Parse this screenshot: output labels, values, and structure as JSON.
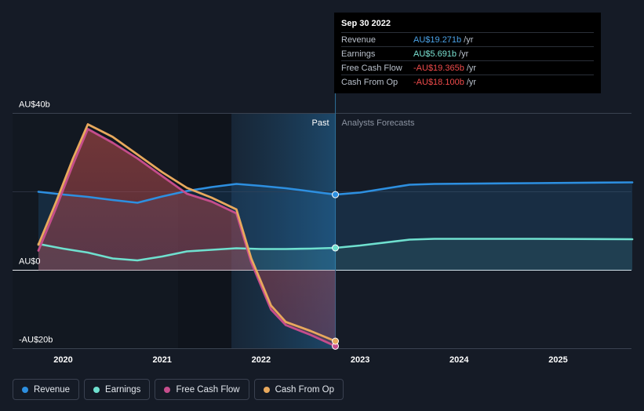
{
  "tooltip": {
    "date": "Sep 30 2022",
    "rows": [
      {
        "label": "Revenue",
        "value": "AU$19.271b",
        "unit": "/yr",
        "color": "#4ba3e8"
      },
      {
        "label": "Earnings",
        "value": "AU$5.691b",
        "unit": "/yr",
        "color": "#7be3d3"
      },
      {
        "label": "Free Cash Flow",
        "value": "-AU$19.365b",
        "unit": "/yr",
        "color": "#f04b4b"
      },
      {
        "label": "Cash From Op",
        "value": "-AU$18.100b",
        "unit": "/yr",
        "color": "#f04b4b"
      }
    ]
  },
  "labels": {
    "past": "Past",
    "forecast": "Analysts Forecasts"
  },
  "legend": [
    {
      "label": "Revenue",
      "color": "#2d8fe0"
    },
    {
      "label": "Earnings",
      "color": "#6fe0cf"
    },
    {
      "label": "Free Cash Flow",
      "color": "#c54d8c"
    },
    {
      "label": "Cash From Op",
      "color": "#e8a95d"
    }
  ],
  "chart_data": {
    "type": "line",
    "y_tick_labels": [
      "AU$40b",
      "AU$0",
      "-AU$20b"
    ],
    "y_ticks": [
      40,
      0,
      -20
    ],
    "ylim": [
      -20,
      40
    ],
    "x_tick_labels": [
      "2020",
      "2021",
      "2022",
      "2023",
      "2024",
      "2025"
    ],
    "x_ticks": [
      2020,
      2021,
      2022,
      2023,
      2024,
      2025
    ],
    "xlim": [
      2019.5,
      2025.75
    ],
    "forecast_start": 2022.75,
    "series": [
      {
        "name": "Revenue",
        "color": "#2d8fe0",
        "x": [
          2019.75,
          2020.0,
          2020.25,
          2020.5,
          2020.75,
          2021.0,
          2021.25,
          2021.5,
          2021.75,
          2022.0,
          2022.25,
          2022.5,
          2022.75,
          2023.0,
          2023.5,
          2023.75,
          2024.75,
          2025.75
        ],
        "y": [
          20.0,
          19.3,
          18.7,
          17.9,
          17.2,
          18.8,
          20.2,
          21.2,
          22.0,
          21.5,
          20.9,
          20.1,
          19.271,
          19.8,
          21.8,
          22.0,
          22.2,
          22.4
        ]
      },
      {
        "name": "Earnings",
        "color": "#6fe0cf",
        "x": [
          2019.75,
          2020.0,
          2020.25,
          2020.5,
          2020.75,
          2021.0,
          2021.25,
          2021.5,
          2021.75,
          2022.0,
          2022.25,
          2022.5,
          2022.75,
          2023.0,
          2023.5,
          2023.75,
          2024.75,
          2025.75
        ],
        "y": [
          6.7,
          5.5,
          4.5,
          3.0,
          2.5,
          3.5,
          4.8,
          5.2,
          5.6,
          5.4,
          5.4,
          5.5,
          5.691,
          6.3,
          7.8,
          8.0,
          8.0,
          7.9
        ]
      },
      {
        "name": "Free Cash Flow",
        "color": "#c54d8c",
        "x": [
          2019.75,
          2019.93,
          2020.1,
          2020.25,
          2020.5,
          2020.75,
          2021.0,
          2021.25,
          2021.5,
          2021.75,
          2021.9,
          2022.1,
          2022.25,
          2022.5,
          2022.75
        ],
        "y": [
          5.0,
          16.0,
          27.0,
          36.0,
          32.5,
          28.5,
          24.0,
          19.5,
          17.5,
          14.5,
          2.0,
          -10.0,
          -14.0,
          -16.5,
          -19.365
        ]
      },
      {
        "name": "Cash From Op",
        "color": "#e8a95d",
        "x": [
          2019.75,
          2019.93,
          2020.1,
          2020.25,
          2020.5,
          2020.75,
          2021.0,
          2021.25,
          2021.5,
          2021.75,
          2021.9,
          2022.1,
          2022.25,
          2022.5,
          2022.75
        ],
        "y": [
          6.5,
          17.5,
          28.5,
          37.2,
          34.0,
          29.5,
          25.0,
          21.0,
          18.5,
          15.5,
          3.0,
          -9.0,
          -13.2,
          -15.5,
          -18.1
        ]
      }
    ]
  }
}
